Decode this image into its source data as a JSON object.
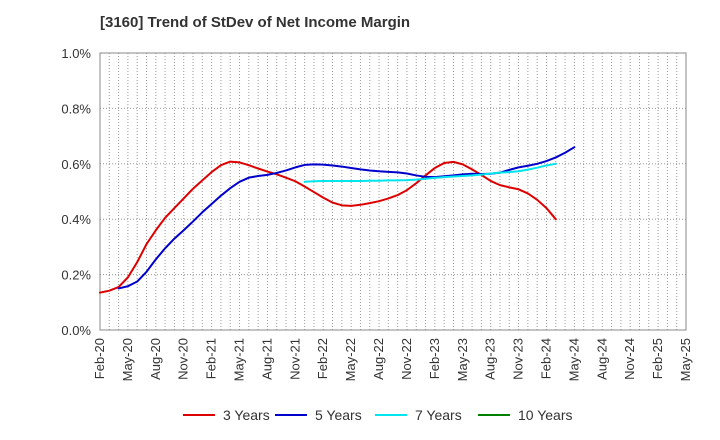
{
  "chart_data": {
    "type": "line",
    "title": "[3160]  Trend of StDev of Net Income Margin",
    "xlabel": "",
    "ylabel": "",
    "ylim": [
      0,
      1.0
    ],
    "y_ticks": [
      "0.0%",
      "0.2%",
      "0.4%",
      "0.6%",
      "0.8%",
      "1.0%"
    ],
    "y_tick_values": [
      0,
      0.2,
      0.4,
      0.6,
      0.8,
      1.0
    ],
    "x_tick_labels": [
      "Feb-20",
      "May-20",
      "Aug-20",
      "Nov-20",
      "Feb-21",
      "May-21",
      "Aug-21",
      "Nov-21",
      "Feb-22",
      "May-22",
      "Aug-22",
      "Nov-22",
      "Feb-23",
      "May-23",
      "Aug-23",
      "Nov-23",
      "Feb-24",
      "May-24",
      "Aug-24",
      "Nov-24",
      "Feb-25",
      "May-25"
    ],
    "grid": true,
    "legend_position": "bottom",
    "series": [
      {
        "name": "3 Years",
        "color": "#dd0000",
        "start_index": 0,
        "values": [
          0.135,
          0.142,
          0.155,
          0.19,
          0.245,
          0.31,
          0.36,
          0.405,
          0.44,
          0.475,
          0.51,
          0.54,
          0.57,
          0.595,
          0.608,
          0.605,
          0.595,
          0.583,
          0.572,
          0.562,
          0.55,
          0.537,
          0.518,
          0.498,
          0.478,
          0.46,
          0.45,
          0.448,
          0.452,
          0.458,
          0.465,
          0.475,
          0.487,
          0.505,
          0.53,
          0.558,
          0.585,
          0.603,
          0.607,
          0.598,
          0.58,
          0.56,
          0.538,
          0.523,
          0.515,
          0.508,
          0.493,
          0.47,
          0.44,
          0.4
        ]
      },
      {
        "name": "5 Years",
        "color": "#0000cc",
        "start_index": 2,
        "values": [
          0.15,
          0.158,
          0.175,
          0.21,
          0.255,
          0.295,
          0.33,
          0.36,
          0.392,
          0.425,
          0.455,
          0.485,
          0.512,
          0.535,
          0.55,
          0.556,
          0.56,
          0.567,
          0.576,
          0.587,
          0.596,
          0.598,
          0.597,
          0.594,
          0.59,
          0.585,
          0.58,
          0.576,
          0.573,
          0.571,
          0.569,
          0.565,
          0.558,
          0.553,
          0.552,
          0.555,
          0.558,
          0.562,
          0.564,
          0.563,
          0.564,
          0.568,
          0.578,
          0.587,
          0.593,
          0.6,
          0.61,
          0.623,
          0.64,
          0.66
        ]
      },
      {
        "name": "7 Years",
        "color": "#00e5ee",
        "start_index": 22,
        "values": [
          0.535,
          0.537,
          0.538,
          0.538,
          0.538,
          0.538,
          0.538,
          0.539,
          0.539,
          0.54,
          0.54,
          0.541,
          0.543,
          0.546,
          0.549,
          0.552,
          0.554,
          0.556,
          0.558,
          0.561,
          0.565,
          0.568,
          0.57,
          0.573,
          0.579,
          0.586,
          0.594,
          0.6
        ]
      },
      {
        "name": "10 Years",
        "color": "#008000",
        "start_index": 0,
        "values": []
      }
    ]
  }
}
